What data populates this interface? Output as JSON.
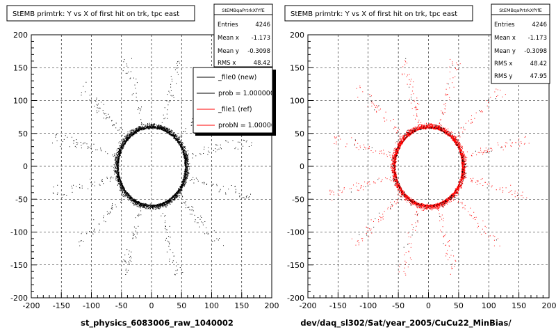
{
  "panels": [
    {
      "title": "StEMB primtrk: Y vs X of first hit on trk, tpc east",
      "stats": {
        "name": "StEMBqaPrtrkXfYfE",
        "rows": [
          {
            "label": "Entries",
            "value": "4246"
          },
          {
            "label": "Mean x",
            "value": "-1.173"
          },
          {
            "label": "Mean y",
            "value": "-0.3098"
          },
          {
            "label": "RMS x",
            "value": "48.42"
          }
        ]
      },
      "legend": [
        {
          "label": "_file0 (new)",
          "color": "#000000"
        },
        {
          "label": "prob = 1.000000",
          "color": "#000000"
        },
        {
          "label": "_file1 (ref)",
          "color": "#ff0000"
        },
        {
          "label": "probN = 1.000000",
          "color": "#ff0000"
        }
      ],
      "xtitle": "st_physics_6083006_raw_1040002",
      "marker_color": "#000000"
    },
    {
      "title": "StEMB primtrk: Y vs X of first hit on trk, tpc east",
      "stats": {
        "name": "StEMBqaPrtrkXfYfE",
        "rows": [
          {
            "label": "Entries",
            "value": "4246"
          },
          {
            "label": "Mean x",
            "value": "-1.173"
          },
          {
            "label": "Mean y",
            "value": "-0.3098"
          },
          {
            "label": "RMS x",
            "value": "48.42"
          },
          {
            "label": "RMS y",
            "value": "47.95"
          }
        ]
      },
      "legend": [],
      "xtitle": "dev/daq_sl302/Sat/year_2005/CuCu22_MinBias/",
      "marker_color": "#ff0000"
    }
  ],
  "chart_data": [
    {
      "type": "scatter",
      "title": "StEMB primtrk: Y vs X of first hit on trk, tpc east",
      "xlabel": "st_physics_6083006_raw_1040002",
      "ylabel": "",
      "xlim": [
        -200,
        200
      ],
      "ylim": [
        -200,
        200
      ],
      "xticks": [
        -200,
        -150,
        -100,
        -50,
        0,
        50,
        100,
        150,
        200
      ],
      "yticks": [
        -200,
        -150,
        -100,
        -50,
        0,
        50,
        100,
        150,
        200
      ],
      "grid": true,
      "legend_position": "top-right",
      "series": [
        {
          "name": "_file0 (new)",
          "color": "#000000",
          "distribution": {
            "ring_radius": 60,
            "ring_count": 3700,
            "spoke_count": 546,
            "spoke_max_radius": 170
          }
        }
      ]
    },
    {
      "type": "scatter",
      "title": "StEMB primtrk: Y vs X of first hit on trk, tpc east",
      "xlabel": "dev/daq_sl302/Sat/year_2005/CuCu22_MinBias/",
      "ylabel": "",
      "xlim": [
        -200,
        200
      ],
      "ylim": [
        -200,
        200
      ],
      "xticks": [
        -200,
        -150,
        -100,
        -50,
        0,
        50,
        100,
        150,
        200
      ],
      "yticks": [
        -200,
        -150,
        -100,
        -50,
        0,
        50,
        100,
        150,
        200
      ],
      "grid": true,
      "series": [
        {
          "name": "_file1 (ref)",
          "color": "#ff0000",
          "distribution": {
            "ring_radius": 60,
            "ring_count": 3700,
            "spoke_count": 546,
            "spoke_max_radius": 170
          }
        },
        {
          "name": "_file0 (new)",
          "color": "#000000",
          "distribution": {
            "ring_radius": 60,
            "ring_count": 300,
            "spoke_count": 60,
            "spoke_max_radius": 170
          }
        }
      ]
    }
  ]
}
